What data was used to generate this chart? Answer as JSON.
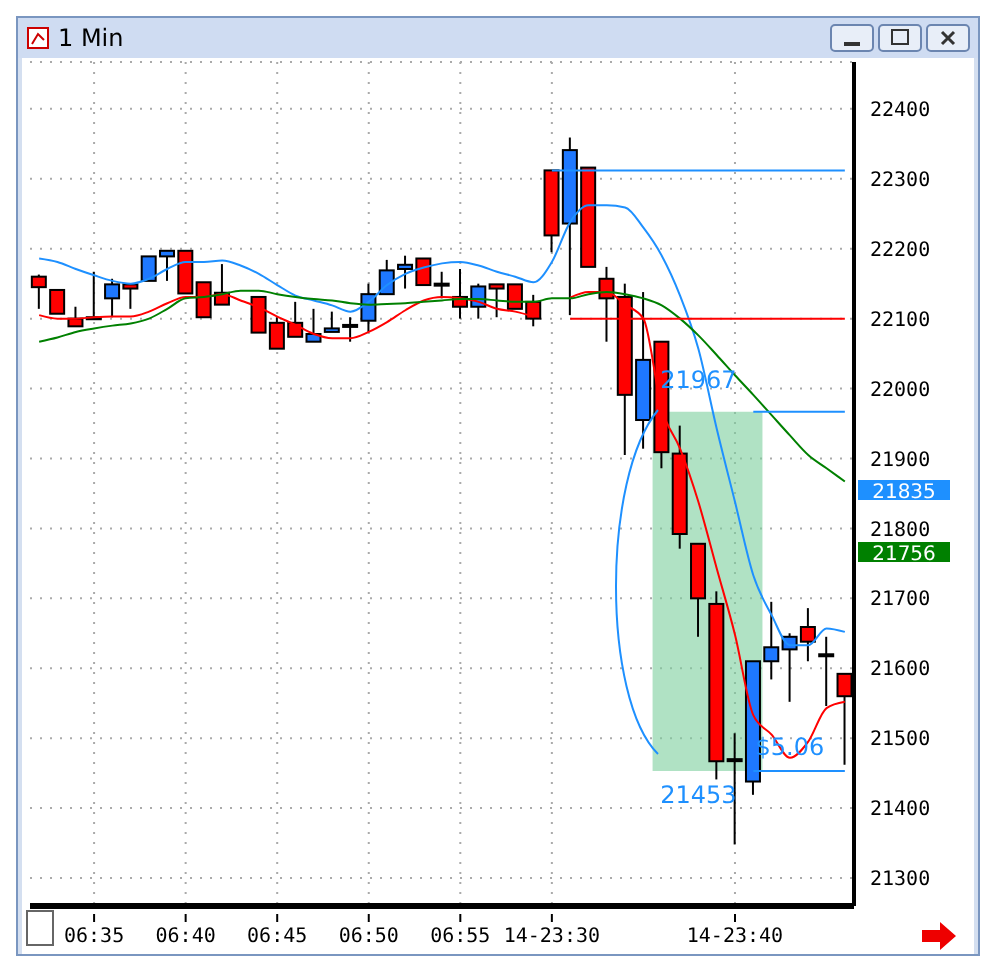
{
  "chart_data": {
    "type": "candlestick",
    "title": "1 Min",
    "categories": [
      null,
      null,
      null,
      "06:35",
      null,
      null,
      null,
      null,
      "06:40",
      null,
      null,
      null,
      null,
      "06:45",
      null,
      null,
      null,
      null,
      "06:50",
      null,
      null,
      null,
      null,
      "06:55",
      null,
      null,
      null,
      null,
      "14-23:30",
      null,
      null,
      null,
      null,
      null,
      null,
      null,
      null,
      null,
      "14-23:40",
      null,
      null,
      null,
      null,
      null,
      null
    ],
    "ohlc": [
      [
        22160,
        22163,
        22114,
        22145
      ],
      [
        22141,
        22141,
        22107,
        22107
      ],
      [
        22100,
        22117,
        22089,
        22089
      ],
      [
        22101,
        22167,
        22101,
        22102
      ],
      [
        22129,
        22157,
        22102,
        22149
      ],
      [
        22149,
        22149,
        22114,
        22143
      ],
      [
        22154,
        22189,
        22154,
        22189
      ],
      [
        22189,
        22197,
        22154,
        22197
      ],
      [
        22197,
        22197,
        22136,
        22136
      ],
      [
        22152,
        22152,
        22102,
        22102
      ],
      [
        22137,
        22178,
        22120,
        22120
      ],
      null,
      [
        22131,
        22131,
        22080,
        22080
      ],
      [
        22094,
        22102,
        22057,
        22057
      ],
      [
        22094,
        22124,
        22074,
        22074
      ],
      [
        22067,
        22114,
        22067,
        22078
      ],
      [
        22081,
        22110,
        22081,
        22086
      ],
      [
        22091,
        22102,
        22067,
        22090
      ],
      [
        22097,
        22150,
        22081,
        22135
      ],
      [
        22135,
        22184,
        22135,
        22169
      ],
      [
        22171,
        22190,
        22143,
        22177
      ],
      [
        22186,
        22186,
        22148,
        22148
      ],
      [
        22150,
        22167,
        22129,
        22149
      ],
      [
        22131,
        22171,
        22100,
        22117
      ],
      [
        22117,
        22150,
        22100,
        22146
      ],
      [
        22149,
        22149,
        22102,
        22143
      ],
      [
        22149,
        22149,
        22114,
        22114
      ],
      [
        22124,
        22134,
        22089,
        22100
      ],
      [
        22312,
        22312,
        22195,
        22219
      ],
      [
        22236,
        22359,
        22105,
        22341
      ],
      [
        22316,
        22316,
        22174,
        22174
      ],
      [
        22157,
        22174,
        22067,
        22129
      ],
      [
        22131,
        22150,
        21905,
        21991
      ],
      [
        21955,
        22138,
        21914,
        22041
      ],
      [
        22067,
        22067,
        21886,
        21909
      ],
      [
        21907,
        21947,
        21771,
        21792
      ],
      [
        21778,
        21778,
        21645,
        21700
      ],
      [
        21692,
        21710,
        21441,
        21467
      ],
      [
        21470,
        21507,
        21348,
        21470
      ],
      [
        21438,
        21610,
        21419,
        21610
      ],
      [
        21610,
        21695,
        21584,
        21630
      ],
      [
        21627,
        21650,
        21552,
        21645
      ],
      [
        21659,
        21686,
        21610,
        21638
      ],
      [
        21620,
        21645,
        21546,
        21619
      ],
      [
        21592,
        21592,
        21462,
        21560
      ]
    ],
    "colors": [
      "#ff0000",
      "#ff0000",
      "#ff0000",
      "#1e78ff",
      "#1e78ff",
      "#ff0000",
      "#1e78ff",
      "#1e78ff",
      "#ff0000",
      "#ff0000",
      "#ff0000",
      null,
      "#ff0000",
      "#ff0000",
      "#ff0000",
      "#1e78ff",
      "#1e78ff",
      "#ff0000",
      "#1e78ff",
      "#1e78ff",
      "#1e78ff",
      "#ff0000",
      "#ff0000",
      "#ff0000",
      "#1e78ff",
      "#ff0000",
      "#ff0000",
      "#ff0000",
      "#ff0000",
      "#1e78ff",
      "#ff0000",
      "#ff0000",
      "#ff0000",
      "#1e78ff",
      "#ff0000",
      "#ff0000",
      "#ff0000",
      "#ff0000",
      "#ff0000",
      "#1e78ff",
      "#1e78ff",
      "#1e78ff",
      "#ff0000",
      "#ff0000",
      "#ff0000"
    ],
    "series": [
      {
        "type": "line",
        "color": "#1e90ff",
        "values": [
          22186,
          22181,
          22171,
          22162,
          22154,
          22150,
          22157,
          22171,
          22181,
          22181,
          22183,
          22176,
          22164,
          22148,
          22133,
          22126,
          22119,
          22110,
          22124,
          22148,
          22164,
          22173,
          22179,
          22181,
          22176,
          22167,
          22160,
          22152,
          22181,
          22238,
          22262,
          22262,
          22259,
          22230,
          22190,
          22133,
          22057,
          21943,
          21838,
          21733,
          21676,
          21633,
          21633,
          21657,
          21652
        ]
      },
      {
        "type": "line",
        "color": "#ff0000",
        "values": [
          22105,
          22100,
          22100,
          22102,
          22103,
          22103,
          22110,
          22122,
          22131,
          22131,
          22135,
          22126,
          22116,
          22103,
          22091,
          22078,
          22072,
          22072,
          22081,
          22095,
          22112,
          22126,
          22131,
          22129,
          22124,
          22114,
          22110,
          22103,
          null,
          22130,
          22138,
          22138,
          22120,
          22100,
          21971,
          21914,
          21838,
          21743,
          21648,
          21533,
          21505,
          21472,
          21495,
          21543,
          21552
        ]
      },
      {
        "type": "line",
        "color": "#008000",
        "values": [
          22067,
          22073,
          22081,
          22086,
          22090,
          22093,
          22100,
          22114,
          22129,
          22131,
          22135,
          22140,
          22140,
          22135,
          22131,
          22128,
          22126,
          22122,
          22120,
          22121,
          22122,
          22124,
          22126,
          22128,
          22128,
          22126,
          22124,
          22124,
          22129,
          22129,
          22135,
          22138,
          22135,
          22129,
          22119,
          22100,
          22076,
          22048,
          22019,
          21991,
          21962,
          21933,
          21905,
          21886,
          21867
        ]
      },
      {
        "type": "line",
        "color": "#1e90ff",
        "values": [
          null,
          null,
          null,
          null,
          null,
          null,
          null,
          null,
          null,
          null,
          null,
          null,
          null,
          null,
          null,
          null,
          null,
          null,
          null,
          null,
          null,
          null,
          null,
          null,
          null,
          null,
          null,
          null,
          22312,
          22312,
          22312,
          22312,
          22312,
          22312,
          22312,
          22312,
          22312,
          22312,
          22312,
          22312,
          22312,
          22312,
          22312,
          22312,
          22312
        ]
      },
      {
        "type": "line",
        "color": "#ff0000",
        "values": [
          null,
          null,
          null,
          null,
          null,
          null,
          null,
          null,
          null,
          null,
          null,
          null,
          null,
          null,
          null,
          null,
          null,
          null,
          null,
          null,
          null,
          null,
          null,
          null,
          null,
          null,
          null,
          null,
          null,
          22100,
          22100,
          22100,
          22100,
          22100,
          22100,
          22100,
          22100,
          22100,
          22100,
          22100,
          22100,
          22100,
          22100,
          22100,
          22100
        ]
      },
      {
        "type": "line",
        "color": "#1e90ff",
        "values": [
          null,
          null,
          null,
          null,
          null,
          null,
          null,
          null,
          null,
          null,
          null,
          null,
          null,
          null,
          null,
          null,
          null,
          null,
          null,
          null,
          null,
          null,
          null,
          null,
          null,
          null,
          null,
          null,
          null,
          null,
          null,
          null,
          null,
          null,
          null,
          null,
          null,
          null,
          null,
          21967,
          21967,
          21967,
          21967,
          21967,
          21967
        ]
      },
      {
        "type": "line",
        "color": "#1e90ff",
        "values": [
          null,
          null,
          null,
          null,
          null,
          null,
          null,
          null,
          null,
          null,
          null,
          null,
          null,
          null,
          null,
          null,
          null,
          null,
          null,
          null,
          null,
          null,
          null,
          null,
          null,
          null,
          null,
          null,
          null,
          null,
          null,
          null,
          null,
          null,
          null,
          null,
          null,
          null,
          null,
          21453,
          21453,
          21453,
          21453,
          21453,
          21453
        ]
      }
    ],
    "bands": [
      {
        "axis": "y",
        "from": 21453,
        "to": 21967,
        "color": "#7ccf9c"
      }
    ],
    "annotations": [
      {
        "text": "21967",
        "y": 21967
      },
      {
        "text": "21453",
        "y": 21453
      },
      {
        "text": "$5.06",
        "y": 21453
      },
      "21835",
      "21756"
    ],
    "ylim": [
      21260,
      22467
    ],
    "yticks": [
      21300,
      21400,
      21500,
      21600,
      21700,
      21800,
      21900,
      22000,
      22100,
      22200,
      22300,
      22400
    ],
    "grid": true
  }
}
